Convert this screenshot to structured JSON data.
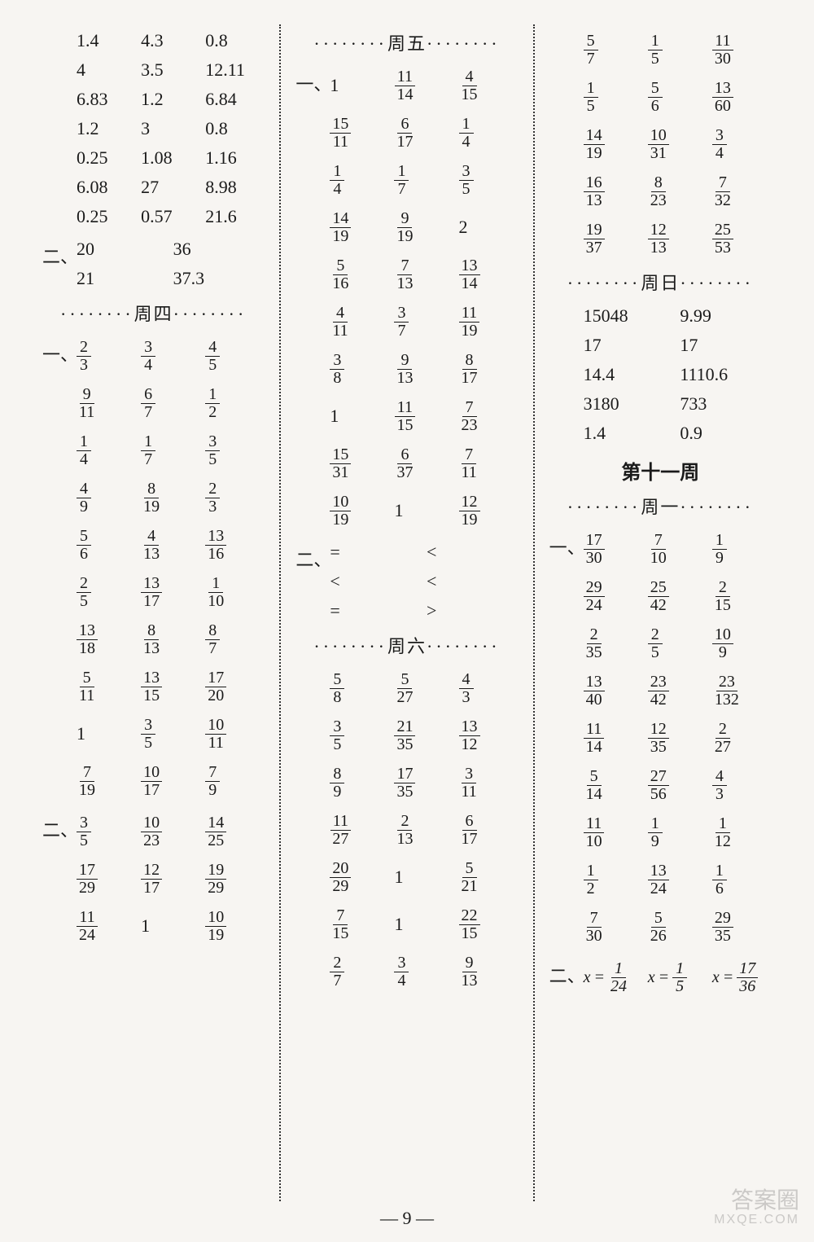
{
  "page_number": "9",
  "watermark": {
    "main": "答案圈",
    "sub": "MXQE.COM"
  },
  "col1": {
    "sec1_plain": [
      [
        "1.4",
        "4.3",
        "0.8"
      ],
      [
        "4",
        "3.5",
        "12.11"
      ],
      [
        "6.83",
        "1.2",
        "6.84"
      ],
      [
        "1.2",
        "3",
        "0.8"
      ],
      [
        "0.25",
        "1.08",
        "1.16"
      ],
      [
        "6.08",
        "27",
        "8.98"
      ],
      [
        "0.25",
        "0.57",
        "21.6"
      ]
    ],
    "sec2_label": "二、",
    "sec2_plain": [
      [
        "20",
        "36"
      ],
      [
        "21",
        "37.3"
      ]
    ],
    "day_thu": "周四",
    "sec3_label": "一、",
    "sec3": [
      [
        "2/3",
        "3/4",
        "4/5"
      ],
      [
        "9/11",
        "6/7",
        "1/2"
      ],
      [
        "1/4",
        "1/7",
        "3/5"
      ],
      [
        "4/9",
        "8/19",
        "2/3"
      ],
      [
        "5/6",
        "4/13",
        "13/16"
      ],
      [
        "2/5",
        "13/17",
        "1/10"
      ],
      [
        "13/18",
        "8/13",
        "8/7"
      ],
      [
        "5/11",
        "13/15",
        "17/20"
      ],
      [
        "1",
        "3/5",
        "10/11"
      ],
      [
        "7/19",
        "10/17",
        "7/9"
      ]
    ],
    "sec4_label": "二、",
    "sec4": [
      [
        "3/5",
        "10/23",
        "14/25"
      ],
      [
        "17/29",
        "12/17",
        "19/29"
      ],
      [
        "11/24",
        "1",
        "10/19"
      ]
    ]
  },
  "col2": {
    "day_fri": "周五",
    "sec1_label": "一、",
    "sec1": [
      [
        "1",
        "11/14",
        "4/15"
      ],
      [
        "15/11",
        "6/17",
        "1/4"
      ],
      [
        "1/4",
        "1/7",
        "3/5"
      ],
      [
        "14/19",
        "9/19",
        "2"
      ],
      [
        "5/16",
        "7/13",
        "13/14"
      ],
      [
        "4/11",
        "3/7",
        "11/19"
      ],
      [
        "3/8",
        "9/13",
        "8/17"
      ],
      [
        "1",
        "11/15",
        "7/23"
      ],
      [
        "15/31",
        "6/37",
        "7/11"
      ],
      [
        "10/19",
        "1",
        "12/19"
      ]
    ],
    "sec2_label": "二、",
    "sec2": [
      [
        "=",
        "<"
      ],
      [
        "<",
        "<"
      ],
      [
        "=",
        ">"
      ]
    ],
    "day_sat": "周六",
    "sec3": [
      [
        "5/8",
        "5/27",
        "4/3"
      ],
      [
        "3/5",
        "21/35",
        "13/12"
      ],
      [
        "8/9",
        "17/35",
        "3/11"
      ],
      [
        "11/27",
        "2/13",
        "6/17"
      ],
      [
        "20/29",
        "1",
        "5/21"
      ],
      [
        "7/15",
        "1",
        "22/15"
      ],
      [
        "2/7",
        "3/4",
        "9/13"
      ]
    ]
  },
  "col3": {
    "sec1": [
      [
        "5/7",
        "1/5",
        "11/30"
      ],
      [
        "1/5",
        "5/6",
        "13/60"
      ],
      [
        "14/19",
        "10/31",
        "3/4"
      ],
      [
        "16/13",
        "8/23",
        "7/32"
      ],
      [
        "19/37",
        "12/13",
        "25/53"
      ]
    ],
    "day_sun": "周日",
    "sec2_plain": [
      [
        "15048",
        "9.99"
      ],
      [
        "17",
        "17"
      ],
      [
        "14.4",
        "1110.6"
      ],
      [
        "3180",
        "733"
      ],
      [
        "1.4",
        "0.9"
      ]
    ],
    "week_title": "第十一周",
    "day_mon": "周一",
    "sec3_label": "一、",
    "sec3": [
      [
        "17/30",
        "7/10",
        "1/9"
      ],
      [
        "29/24",
        "25/42",
        "2/15"
      ],
      [
        "2/35",
        "2/5",
        "10/9"
      ],
      [
        "13/40",
        "23/42",
        "23/132"
      ],
      [
        "11/14",
        "12/35",
        "2/27"
      ],
      [
        "5/14",
        "27/56",
        "4/3"
      ],
      [
        "11/10",
        "1/9",
        "1/12"
      ],
      [
        "1/2",
        "13/24",
        "1/6"
      ],
      [
        "7/30",
        "5/26",
        "29/35"
      ]
    ],
    "sec4_label": "二、",
    "sec4_eq": [
      {
        "var": "x",
        "val": "1/24"
      },
      {
        "var": "x",
        "val": "1/5"
      },
      {
        "var": "x",
        "val": "17/36"
      }
    ]
  }
}
